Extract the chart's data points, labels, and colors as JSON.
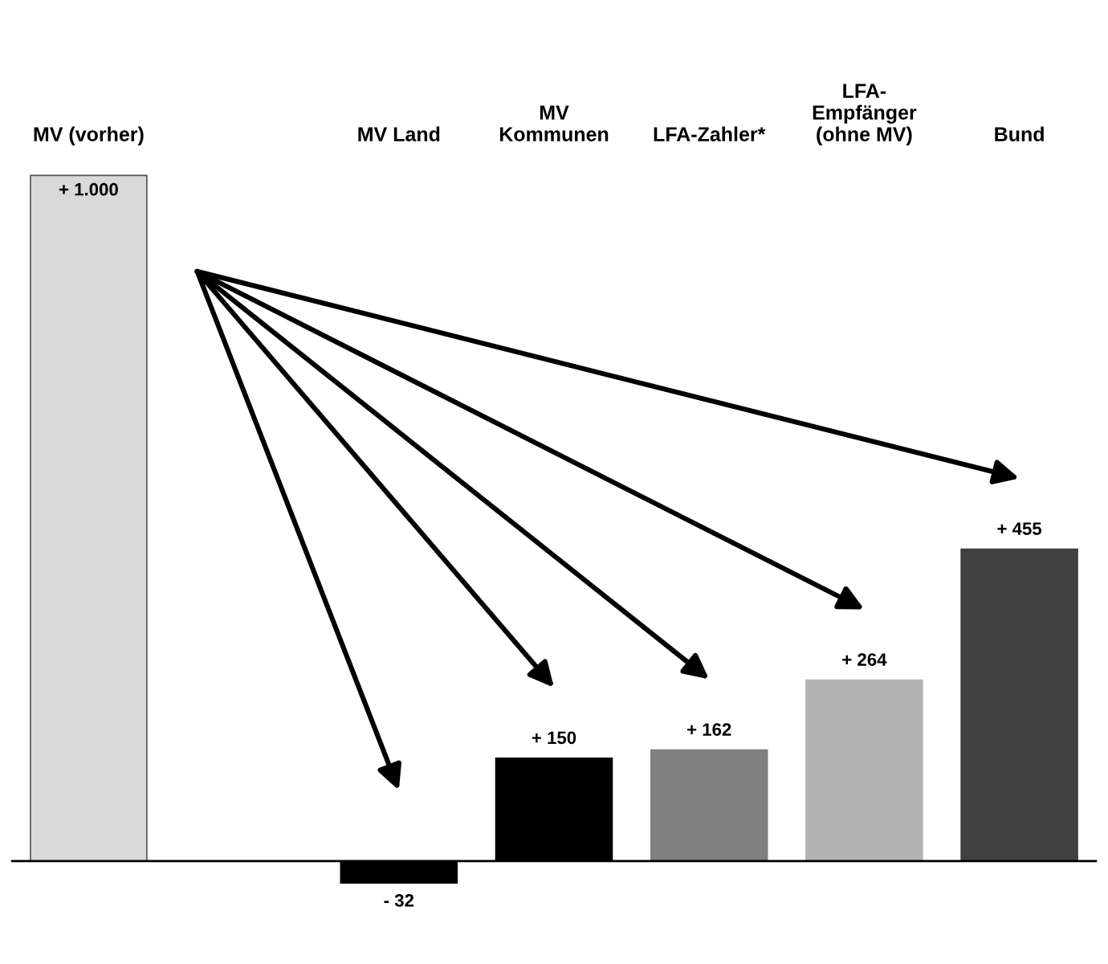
{
  "chart_data": {
    "type": "bar",
    "categories": [
      "MV (vorher)",
      null,
      "MV Land",
      "MV\nKommunen",
      "LFA-Zahler*",
      "LFA-\nEmpfänger\n(ohne MV)",
      "Bund"
    ],
    "values": [
      1000,
      null,
      -32,
      150,
      162,
      264,
      455
    ],
    "colors": [
      "#d9d9d9",
      "#ffffff",
      "#000000",
      "#000000",
      "#808080",
      "#b3b3b3",
      "#404040"
    ],
    "value_labels": [
      "+ 1.000",
      null,
      "- 32",
      "+ 150",
      "+ 162",
      "+ 264",
      "+ 455"
    ],
    "grid": false,
    "legend": false
  }
}
